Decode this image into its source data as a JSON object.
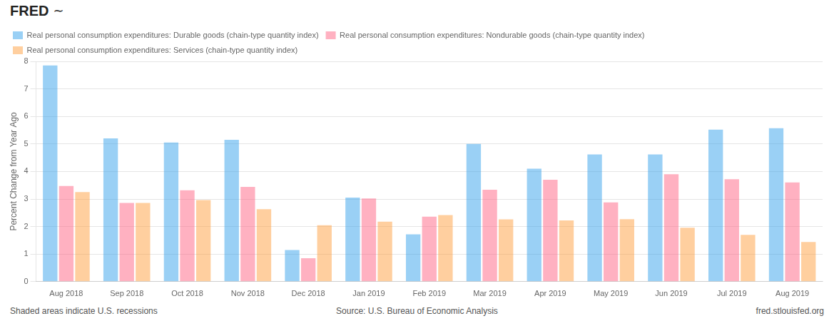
{
  "chart_data": {
    "type": "bar",
    "categories": [
      "Aug 2018",
      "Sep 2018",
      "Oct 2018",
      "Nov 2018",
      "Dec 2018",
      "Jan 2019",
      "Feb 2019",
      "Mar 2019",
      "Apr 2019",
      "May 2019",
      "Jun 2019",
      "Jul 2019",
      "Aug 2019"
    ],
    "series": [
      {
        "name": "Real personal consumption expenditures: Durable goods (chain-type quantity index)",
        "values": [
          7.85,
          5.2,
          5.05,
          5.15,
          1.15,
          3.05,
          1.72,
          5.0,
          4.1,
          4.62,
          4.62,
          5.52,
          5.57
        ]
      },
      {
        "name": "Real personal consumption expenditures: Nondurable goods (chain-type quantity index)",
        "values": [
          3.47,
          2.86,
          3.32,
          3.44,
          0.85,
          3.02,
          2.36,
          3.34,
          3.7,
          2.88,
          3.9,
          3.72,
          3.6
        ]
      },
      {
        "name": "Real personal consumption expenditures: Services (chain-type quantity index)",
        "values": [
          3.25,
          2.86,
          2.96,
          2.63,
          2.05,
          2.18,
          2.42,
          2.26,
          2.22,
          2.27,
          1.96,
          1.7,
          1.44
        ]
      }
    ],
    "ylabel": "Percent Change from Year Ago",
    "ylim": [
      0,
      8
    ],
    "yticks": [
      0,
      1,
      2,
      3,
      4,
      5,
      6,
      7,
      8
    ],
    "grid": true,
    "legend": "top",
    "annotations": [
      "FRED",
      "∼",
      "Shaded areas indicate U.S. recessions",
      "Source: U.S. Bureau of Economic Analysis",
      "fred.stlouisfed.org"
    ]
  }
}
